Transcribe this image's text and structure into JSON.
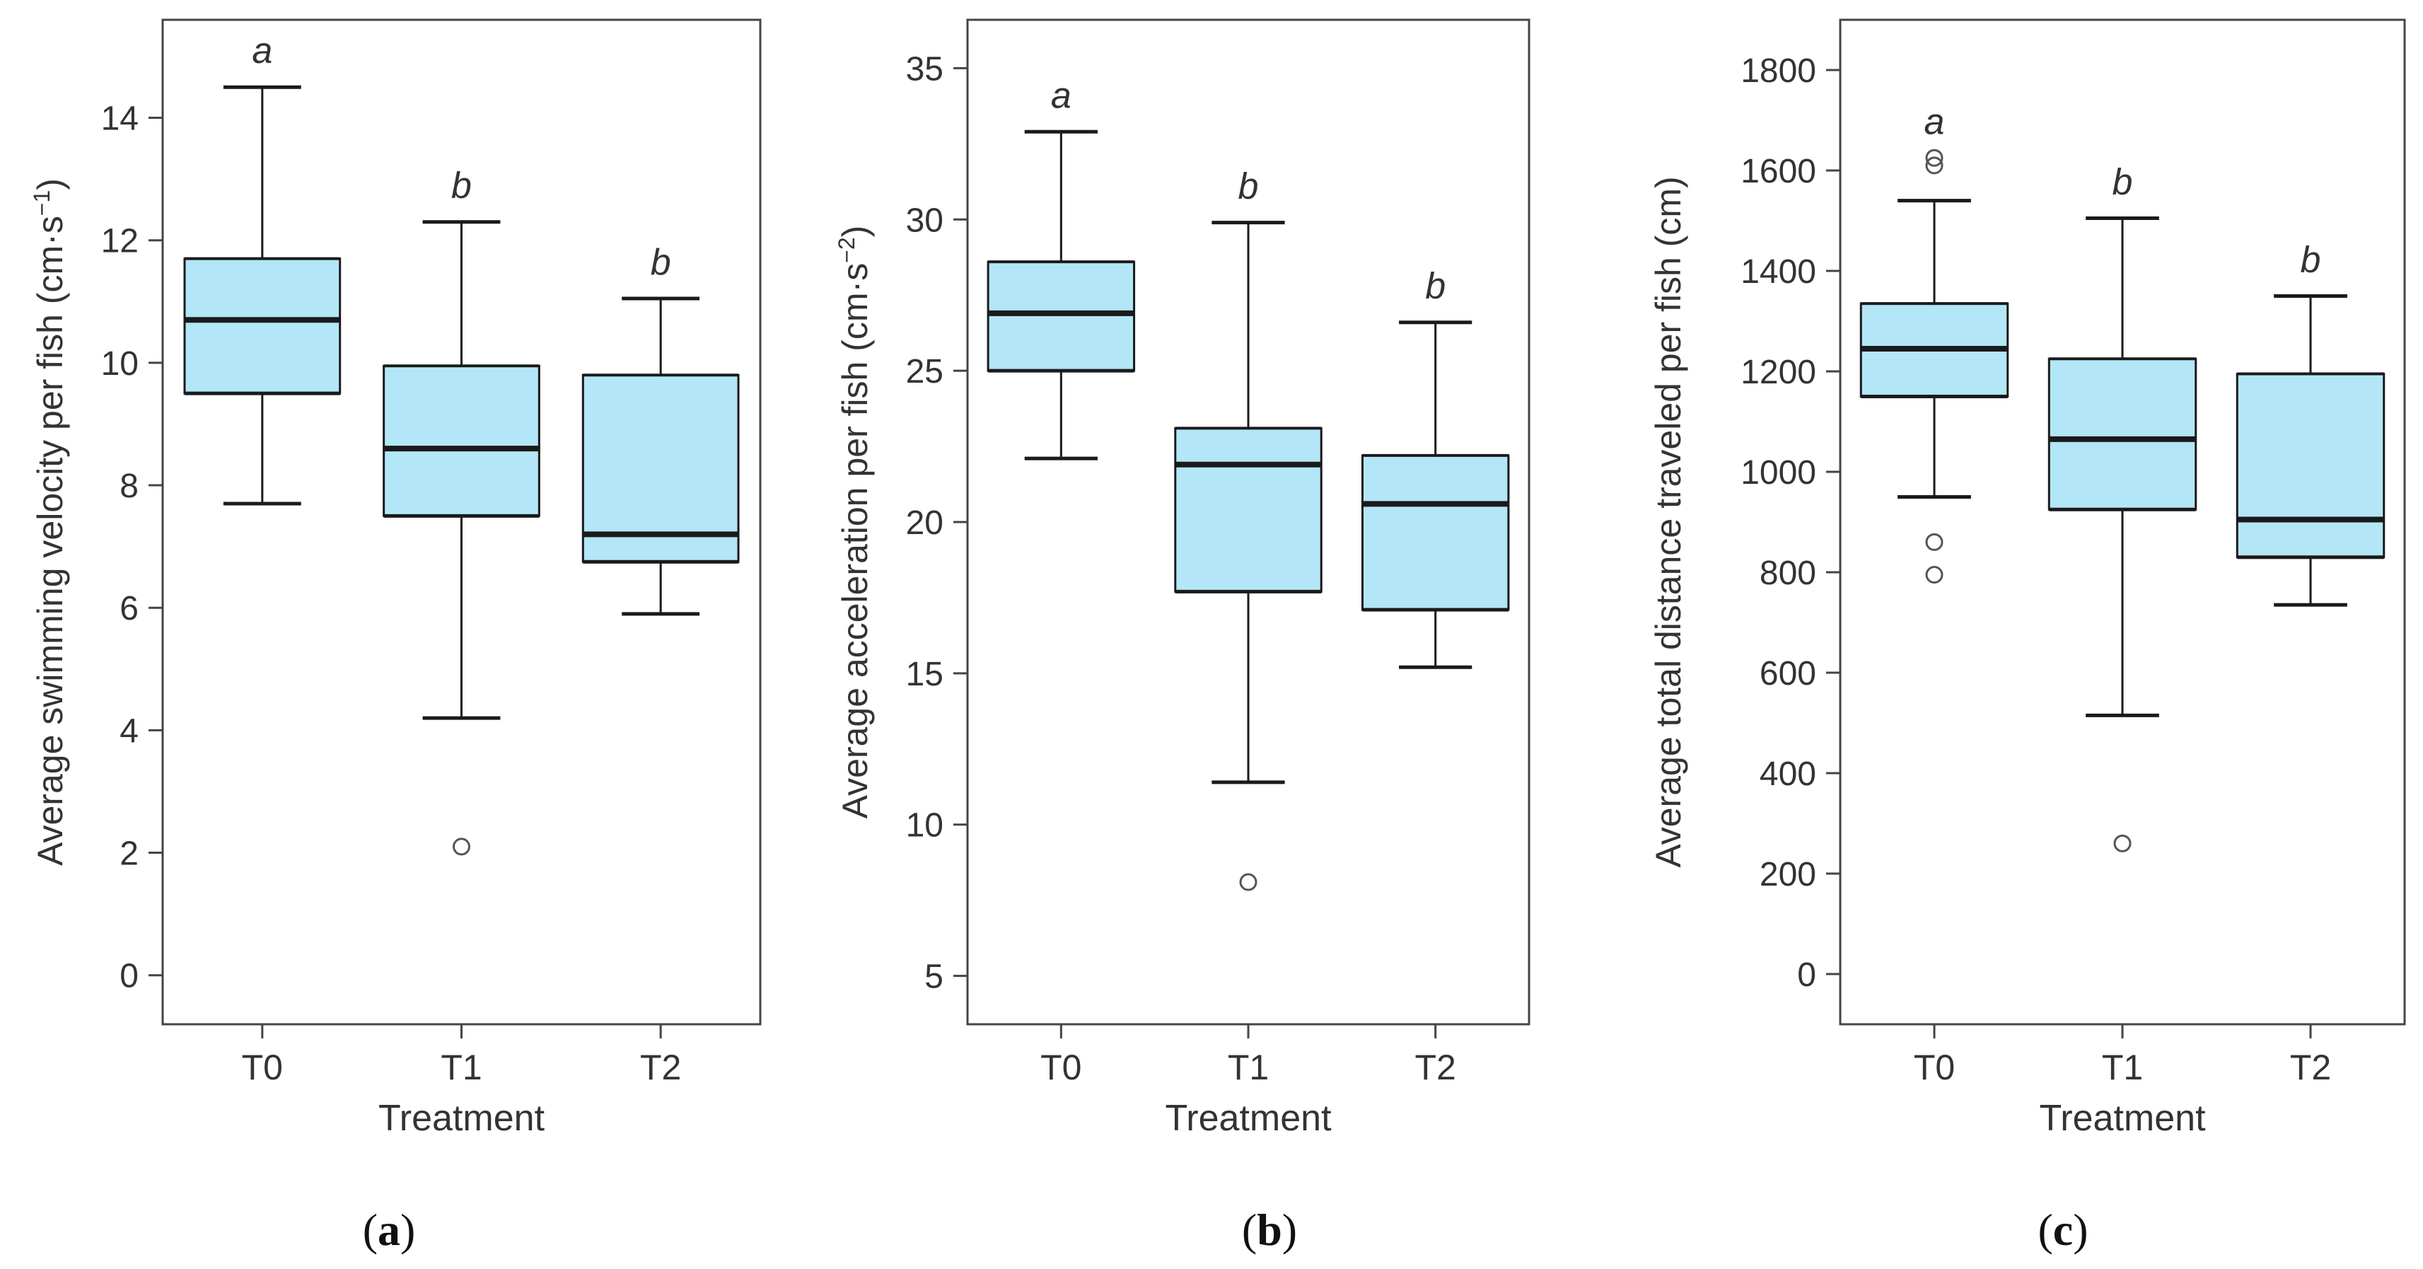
{
  "colors": {
    "box_fill": "#b3e6f7",
    "stroke": "#1a1a1a",
    "frame": "#444444",
    "text": "#333333"
  },
  "chart_data": [
    {
      "type": "box",
      "panel_label": "a",
      "xlabel": "Treatment",
      "ylabel": "Average swimming velocity per fish (cm·s⁻¹)",
      "ylabel_main": "Average swimming velocity per fish (cm·s",
      "ylabel_exp": "−1",
      "ylabel_end": ")",
      "ylim": [
        -0.8,
        15.6
      ],
      "yticks": [
        "0",
        "2",
        "4",
        "6",
        "8",
        "10",
        "12",
        "14"
      ],
      "categories": [
        "T0",
        "T1",
        "T2"
      ],
      "boxes": [
        {
          "min": 7.7,
          "q1": 9.5,
          "median": 10.7,
          "q3": 11.7,
          "max": 14.5,
          "outliers": [],
          "letter": "a"
        },
        {
          "min": 4.2,
          "q1": 7.5,
          "median": 8.6,
          "q3": 9.95,
          "max": 12.3,
          "outliers": [
            2.1
          ],
          "letter": "b"
        },
        {
          "min": 5.9,
          "q1": 6.75,
          "median": 7.2,
          "q3": 9.8,
          "max": 11.05,
          "outliers": [],
          "letter": "b"
        }
      ]
    },
    {
      "type": "box",
      "panel_label": "b",
      "xlabel": "Treatment",
      "ylabel": "Average acceleration per fish (cm·s⁻²)",
      "ylabel_main": "Average acceleration per fish (cm·s",
      "ylabel_exp": "−2",
      "ylabel_end": ")",
      "ylim": [
        3.4,
        36.6
      ],
      "yticks": [
        "5",
        "10",
        "15",
        "20",
        "25",
        "30",
        "35"
      ],
      "categories": [
        "T0",
        "T1",
        "T2"
      ],
      "boxes": [
        {
          "min": 22.1,
          "q1": 25.0,
          "median": 26.9,
          "q3": 28.6,
          "max": 32.9,
          "outliers": [],
          "letter": "a"
        },
        {
          "min": 11.4,
          "q1": 17.7,
          "median": 21.9,
          "q3": 23.1,
          "max": 29.9,
          "outliers": [
            8.1
          ],
          "letter": "b"
        },
        {
          "min": 15.2,
          "q1": 17.1,
          "median": 20.6,
          "q3": 22.2,
          "max": 26.6,
          "outliers": [],
          "letter": "b"
        }
      ]
    },
    {
      "type": "box",
      "panel_label": "c",
      "xlabel": "Treatment",
      "ylabel": "Average total distance traveled per fish (cm)",
      "ylabel_main": "Average total distance traveled per fish (cm)",
      "ylabel_exp": "",
      "ylabel_end": "",
      "ylim": [
        -100,
        1900
      ],
      "yticks": [
        "0",
        "200",
        "400",
        "600",
        "800",
        "1000",
        "1200",
        "1400",
        "1600",
        "1800"
      ],
      "categories": [
        "T0",
        "T1",
        "T2"
      ],
      "boxes": [
        {
          "min": 950,
          "q1": 1150,
          "median": 1245,
          "q3": 1335,
          "max": 1540,
          "outliers": [
            1610,
            1625,
            860,
            795
          ],
          "letter": "a"
        },
        {
          "min": 515,
          "q1": 925,
          "median": 1065,
          "q3": 1225,
          "max": 1505,
          "outliers": [
            260
          ],
          "letter": "b"
        },
        {
          "min": 735,
          "q1": 830,
          "median": 905,
          "q3": 1195,
          "max": 1350,
          "outliers": [],
          "letter": "b"
        }
      ]
    }
  ]
}
